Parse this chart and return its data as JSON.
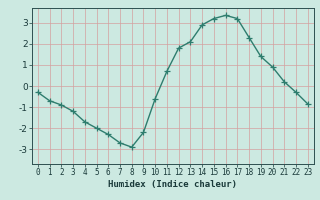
{
  "x": [
    0,
    1,
    2,
    3,
    4,
    5,
    6,
    7,
    8,
    9,
    10,
    11,
    12,
    13,
    14,
    15,
    16,
    17,
    18,
    19,
    20,
    21,
    22,
    23
  ],
  "y": [
    -0.3,
    -0.7,
    -0.9,
    -1.2,
    -1.7,
    -2.0,
    -2.3,
    -2.7,
    -2.9,
    -2.2,
    -0.6,
    0.7,
    1.8,
    2.1,
    2.9,
    3.2,
    3.35,
    3.2,
    2.3,
    1.4,
    0.9,
    0.2,
    -0.3,
    -0.85
  ],
  "line_color": "#2e7d6e",
  "marker": "+",
  "marker_size": 4,
  "linewidth": 1.0,
  "background_color": "#cce9e1",
  "grid_color_v": "#d4a0a0",
  "grid_color_h": "#b8d0cc",
  "axis_label_color": "#1a3a3a",
  "xlabel": "Humidex (Indice chaleur)",
  "xlim": [
    -0.5,
    23.5
  ],
  "ylim": [
    -3.7,
    3.7
  ],
  "yticks": [
    -3,
    -2,
    -1,
    0,
    1,
    2,
    3
  ],
  "xticks": [
    0,
    1,
    2,
    3,
    4,
    5,
    6,
    7,
    8,
    9,
    10,
    11,
    12,
    13,
    14,
    15,
    16,
    17,
    18,
    19,
    20,
    21,
    22,
    23
  ]
}
